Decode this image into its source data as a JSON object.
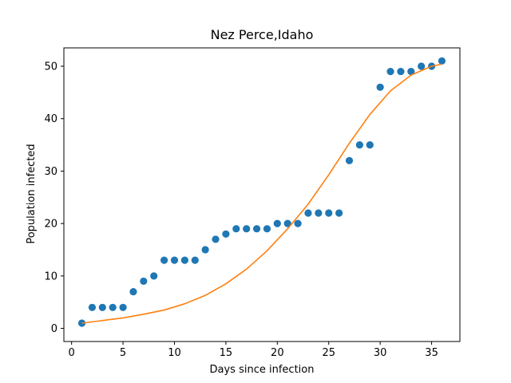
{
  "chart_data": {
    "type": "scatter",
    "title": "Nez Perce,Idaho",
    "xlabel": "Days since infection",
    "ylabel": "Population infected",
    "xlim": [
      -0.75,
      37.75
    ],
    "ylim": [
      -2.5,
      53.5
    ],
    "xticks": [
      0,
      5,
      10,
      15,
      20,
      25,
      30,
      35
    ],
    "yticks": [
      0,
      10,
      20,
      30,
      40,
      50
    ],
    "grid": false,
    "legend": "none",
    "series": [
      {
        "kind": "scatter",
        "color": "#1f77b4",
        "x": [
          1,
          2,
          3,
          4,
          5,
          6,
          7,
          8,
          9,
          10,
          11,
          12,
          13,
          14,
          15,
          16,
          17,
          18,
          19,
          20,
          21,
          22,
          23,
          24,
          25,
          26,
          27,
          28,
          29,
          30,
          31,
          32,
          33,
          34,
          35,
          36
        ],
        "y": [
          1,
          4,
          4,
          4,
          4,
          7,
          9,
          10,
          13,
          13,
          13,
          13,
          15,
          17,
          18,
          19,
          19,
          19,
          19,
          20,
          20,
          20,
          22,
          22,
          22,
          22,
          32,
          35,
          35,
          46,
          49,
          49,
          49,
          50,
          50,
          51
        ]
      },
      {
        "kind": "line",
        "color": "#ff7f0e",
        "x": [
          1,
          3,
          5,
          7,
          9,
          11,
          13,
          15,
          17,
          19,
          21,
          23,
          25,
          27,
          29,
          31,
          33,
          35,
          36
        ],
        "y": [
          1,
          1.5,
          2,
          2.7,
          3.5,
          4.7,
          6.3,
          8.5,
          11.3,
          14.8,
          19,
          23.7,
          29.3,
          35.3,
          40.8,
          45.3,
          48.3,
          50,
          50.4
        ]
      }
    ]
  }
}
